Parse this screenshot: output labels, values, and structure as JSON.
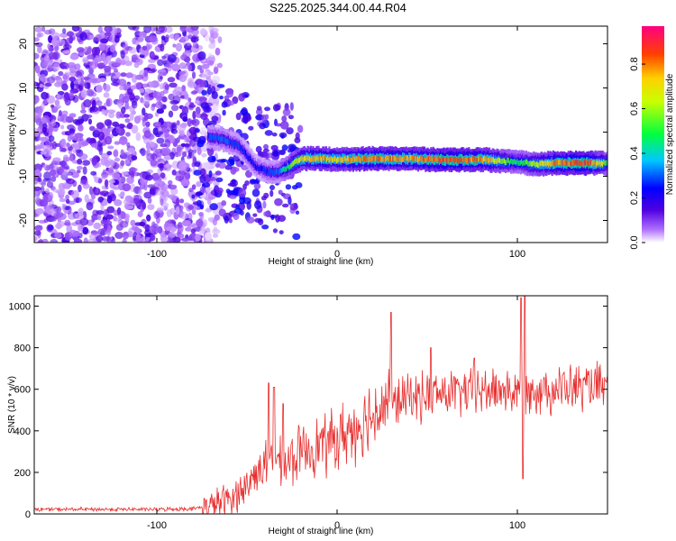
{
  "title": "S225.2025.344.00.44.R04",
  "chart_data": [
    {
      "type": "heatmap",
      "name": "spectrogram",
      "xlabel": "Height of straight line (km)",
      "ylabel": "Frequency (Hz)",
      "xlim": [
        -168,
        150
      ],
      "ylim": [
        -25,
        24
      ],
      "xticks": [
        -100,
        0,
        100
      ],
      "yticks": [
        -20,
        -10,
        0,
        10,
        20
      ],
      "colorbar": {
        "label": "Normalized spectral amplitude",
        "range": [
          0.0,
          0.97
        ],
        "ticks": [
          0.0,
          0.2,
          0.4,
          0.6,
          0.8
        ]
      },
      "ridge": {
        "x": [
          -72,
          -65,
          -55,
          -45,
          -38,
          -33,
          -28,
          -20,
          -10,
          0,
          20,
          40,
          60,
          80,
          100,
          110,
          120,
          140,
          150
        ],
        "y": [
          -1,
          -1.5,
          -3,
          -8,
          -9,
          -9,
          -8,
          -6,
          -6,
          -6.2,
          -6,
          -6,
          -6.3,
          -6.2,
          -6.8,
          -7.3,
          -7,
          -7,
          -7
        ],
        "amplitude": [
          0.3,
          0.35,
          0.3,
          0.25,
          0.3,
          0.35,
          0.55,
          0.8,
          0.85,
          0.8,
          0.9,
          0.85,
          0.95,
          0.9,
          0.5,
          0.7,
          0.9,
          0.95,
          0.6
        ]
      },
      "noise_region_x": [
        -168,
        -75
      ]
    },
    {
      "type": "line",
      "name": "snr",
      "xlabel": "Height of straight line (km)",
      "ylabel": "SNR (10 * v/v)",
      "xlim": [
        -168,
        150
      ],
      "ylim": [
        0,
        1050
      ],
      "xticks": [
        -100,
        0,
        100
      ],
      "yticks": [
        0,
        200,
        400,
        600,
        800,
        1000
      ],
      "color": "#e83030",
      "envelope": {
        "x": [
          -168,
          -100,
          -80,
          -70,
          -60,
          -50,
          -45,
          -40,
          -35,
          -30,
          -25,
          -20,
          -15,
          -10,
          -5,
          0,
          10,
          20,
          25,
          30,
          40,
          60,
          80,
          95,
          100,
          103,
          106,
          120,
          140,
          150
        ],
        "y": [
          22,
          22,
          25,
          40,
          70,
          130,
          200,
          250,
          260,
          230,
          260,
          300,
          320,
          330,
          340,
          360,
          420,
          480,
          520,
          530,
          560,
          580,
          590,
          600,
          560,
          620,
          600,
          600,
          610,
          600
        ]
      },
      "spikes": [
        {
          "x": -38,
          "y": 630
        },
        {
          "x": -35,
          "y": 610
        },
        {
          "x": -30,
          "y": 530
        },
        {
          "x": 30,
          "y": 970
        },
        {
          "x": 52,
          "y": 800
        },
        {
          "x": 76,
          "y": 750
        },
        {
          "x": 102,
          "y": 1040
        },
        {
          "x": 103,
          "y": 170
        },
        {
          "x": 104,
          "y": 1050
        }
      ]
    }
  ]
}
